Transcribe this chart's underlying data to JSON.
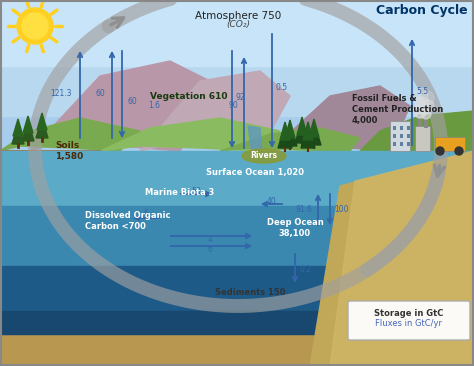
{
  "title": "Carbon Cycle",
  "labels": {
    "atmosphere": "Atmosphere 750",
    "co2": "(CO₂)",
    "vegetation": "Vegetation 610",
    "soils": "Soils\n1,580",
    "marine_biota": "Marine Biota 3",
    "doc": "Dissolved Organic\nCarbon <700",
    "surface_ocean": "Surface Ocean 1,020",
    "deep_ocean": "Deep Ocean\n38,100",
    "sediments": "Sediments 150",
    "rivers": "Rivers",
    "fossil_fuels": "Fossil Fuels &\nCement Production\n4,000",
    "storage": "Storage in GtC",
    "fluxes": "Fluxes in GtC/yr"
  },
  "colors": {
    "sky_top": "#A8D4EE",
    "sky_bottom": "#C8E8F8",
    "mountain_purple": "#B09098",
    "mountain_purple2": "#C0A8B0",
    "hill_green": "#7AAA5A",
    "hill_green2": "#8ABB6A",
    "hill_green3": "#6A9A4A",
    "right_hill": "#5A8A3A",
    "ocean_surf": "#6ABCD0",
    "ocean_mid": "#4A8EB0",
    "ocean_deep": "#2A6090",
    "ocean_deeper": "#1A4A70",
    "sediment": "#C8A860",
    "sand_right": "#C0A050",
    "land_brown": "#8B6040",
    "ground_tan": "#B09060",
    "gray_arrow": "#909090",
    "blue_arrow": "#3366AA",
    "border": "#888888",
    "title_color": "#003366",
    "flux_color": "#5577BB"
  }
}
